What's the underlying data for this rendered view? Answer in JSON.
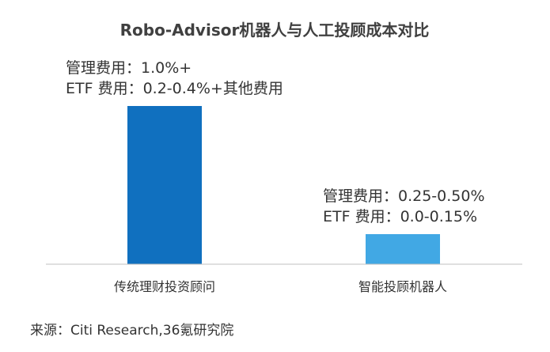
{
  "chart_data": {
    "type": "bar",
    "title": "Robo-Advisor机器人与人工投顾成本对比",
    "categories": [
      "传统理财投资顾问",
      "智能投顾机器人"
    ],
    "values": [
      100,
      19
    ],
    "colors": [
      "#1070BF",
      "#41A8E4"
    ],
    "annotations": [
      [
        "管理费用：1.0%+",
        "ETF 费用：0.2-0.4%+其他费用"
      ],
      [
        "管理费用：0.25-0.50%",
        "ETF 费用：0.0-0.15%"
      ]
    ],
    "grid": false,
    "legend": "none",
    "source": "来源：Citi Research,36氪研究院"
  }
}
